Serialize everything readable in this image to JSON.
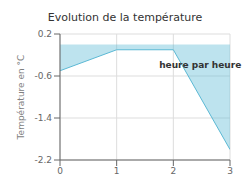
{
  "chart_data": {
    "type": "area",
    "title": "Evolution de la température",
    "ylabel": "Température en °C",
    "x": [
      0,
      1,
      2,
      3
    ],
    "values": [
      -0.5,
      -0.1,
      -0.1,
      -2.0
    ],
    "color": "#5bb8d4",
    "xlim": [
      0,
      3
    ],
    "ylim": [
      -2.2,
      0.2
    ],
    "xticks": [
      0,
      1,
      2,
      3
    ],
    "yticks": [
      0.2,
      -0.6,
      -1.4,
      -2.2
    ],
    "grid": true,
    "annotations": [
      {
        "text": "heure par heure",
        "x": 1.75,
        "y": -0.38
      }
    ]
  }
}
